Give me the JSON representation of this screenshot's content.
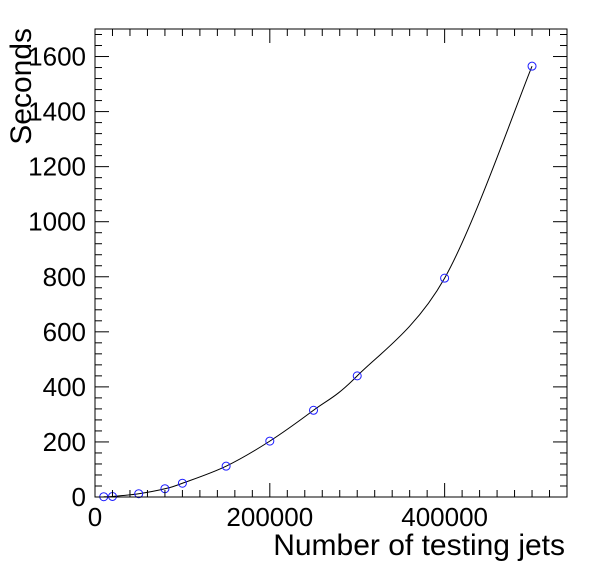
{
  "chart_data": {
    "type": "scatter",
    "title": "",
    "xlabel": "Number of testing jets",
    "ylabel": "Seconds",
    "xlim": [
      0,
      540000
    ],
    "ylim": [
      0,
      1700
    ],
    "x_ticks": [
      0,
      200000,
      400000
    ],
    "x_tick_labels": [
      "0",
      "200000",
      "400000"
    ],
    "y_ticks": [
      0,
      200,
      400,
      600,
      800,
      1000,
      1200,
      1400,
      1600
    ],
    "y_tick_labels": [
      "0",
      "200",
      "400",
      "600",
      "800",
      "1000",
      "1200",
      "1400",
      "1600"
    ],
    "grid": false,
    "series": [
      {
        "marker_color": "#1a1aff",
        "line_color": "#000000",
        "points": [
          {
            "x": 10000,
            "y": 1
          },
          {
            "x": 20000,
            "y": 2
          },
          {
            "x": 50000,
            "y": 12
          },
          {
            "x": 80000,
            "y": 30
          },
          {
            "x": 100000,
            "y": 50
          },
          {
            "x": 150000,
            "y": 112
          },
          {
            "x": 200000,
            "y": 203
          },
          {
            "x": 250000,
            "y": 315
          },
          {
            "x": 300000,
            "y": 440
          },
          {
            "x": 400000,
            "y": 795
          },
          {
            "x": 500000,
            "y": 1565
          }
        ]
      }
    ]
  }
}
